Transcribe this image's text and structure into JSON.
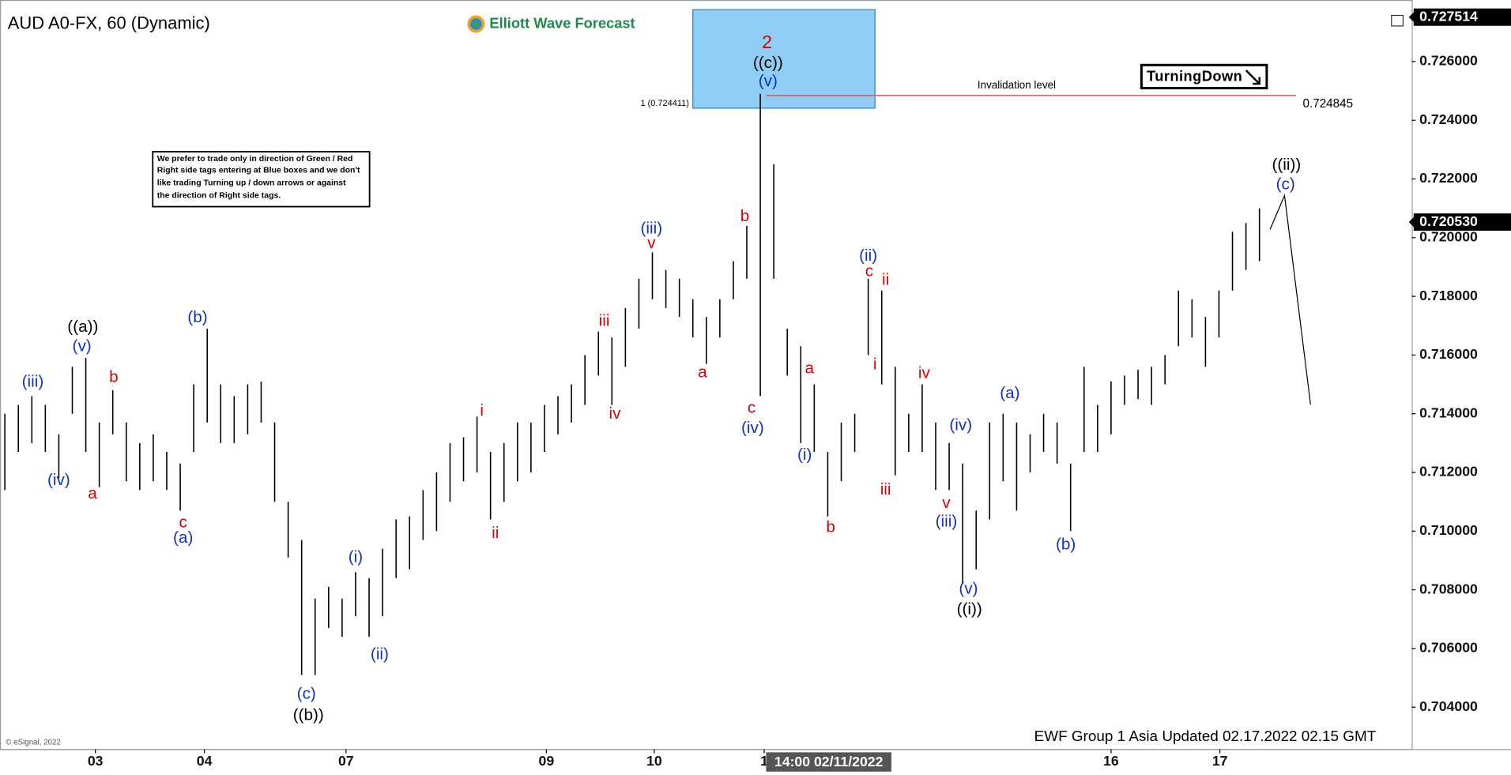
{
  "chart_data": {
    "type": "ohlc",
    "title": "AUD A0-FX, 60 (Dynamic)",
    "logo": "Elliott Wave Forecast",
    "note": [
      "We prefer to trade only in direction of Green / Red",
      "Right side tags entering at Blue boxes and we don't",
      "like trading Turning up / down arrows or against",
      "the direction of Right side tags."
    ],
    "tag": "TurningDown",
    "footer": "EWF Group 1 Asia Updated 02.17.2022 02.15 GMT",
    "copyright": "© eSignal, 2022",
    "cursor_label": "14:00 02/11/2022",
    "color": "#000000",
    "highs": [
      0.714,
      0.7143,
      0.7146,
      0.7143,
      0.7133,
      0.7156,
      0.7159,
      0.7137,
      0.7148,
      0.7137,
      0.713,
      0.7133,
      0.7127,
      0.7123,
      0.715,
      0.7169,
      0.715,
      0.7146,
      0.715,
      0.7151,
      0.7137,
      0.711,
      0.7097,
      0.7077,
      0.7081,
      0.7077,
      0.7086,
      0.7084,
      0.7094,
      0.7104,
      0.7105,
      0.7114,
      0.712,
      0.713,
      0.7132,
      0.7139,
      0.7127,
      0.713,
      0.7137,
      0.7137,
      0.7143,
      0.7146,
      0.715,
      0.716,
      0.7168,
      0.7166,
      0.7176,
      0.7186,
      0.7195,
      0.7189,
      0.7186,
      0.7179,
      0.7173,
      0.7179,
      0.7192,
      0.7204,
      0.7249,
      0.7225,
      0.7169,
      0.7163,
      0.715,
      0.7127,
      0.7137,
      0.714,
      0.7186,
      0.7182,
      0.7156,
      0.714,
      0.715,
      0.7137,
      0.713,
      0.7123,
      0.7107,
      0.7137,
      0.714,
      0.7137,
      0.7133,
      0.714,
      0.7137,
      0.7123,
      0.7156,
      0.7143,
      0.7151,
      0.7153,
      0.7155,
      0.7156,
      0.716,
      0.7182,
      0.7179,
      0.7173,
      0.7182,
      0.7202,
      0.7205,
      0.721
    ],
    "lows": [
      0.7114,
      0.7127,
      0.713,
      0.7127,
      0.7118,
      0.714,
      0.7127,
      0.7115,
      0.7133,
      0.7117,
      0.7114,
      0.7117,
      0.7114,
      0.7107,
      0.7127,
      0.7137,
      0.713,
      0.713,
      0.7133,
      0.7137,
      0.711,
      0.7091,
      0.7051,
      0.7051,
      0.7067,
      0.7064,
      0.7071,
      0.7064,
      0.7071,
      0.7084,
      0.7087,
      0.7097,
      0.71,
      0.711,
      0.7117,
      0.712,
      0.7104,
      0.711,
      0.7117,
      0.712,
      0.7127,
      0.7133,
      0.7137,
      0.7143,
      0.7153,
      0.7143,
      0.7156,
      0.7169,
      0.7179,
      0.7176,
      0.7173,
      0.7166,
      0.7157,
      0.7166,
      0.7179,
      0.7186,
      0.7146,
      0.7186,
      0.7153,
      0.713,
      0.7127,
      0.7105,
      0.7117,
      0.7127,
      0.716,
      0.715,
      0.7119,
      0.7127,
      0.7127,
      0.7114,
      0.7114,
      0.7082,
      0.7087,
      0.7104,
      0.7117,
      0.7107,
      0.712,
      0.7127,
      0.7123,
      0.71,
      0.7127,
      0.7127,
      0.7133,
      0.7143,
      0.7145,
      0.7143,
      0.715,
      0.7163,
      0.7166,
      0.7156,
      0.7166,
      0.7182,
      0.7189,
      0.7192
    ],
    "xlim": [
      -0.36,
      104.29
    ],
    "xticks": [
      {
        "value": 6.71,
        "label": "03"
      },
      {
        "value": 14.79,
        "label": "04"
      },
      {
        "value": 25.29,
        "label": "07"
      },
      {
        "value": 40.14,
        "label": "09"
      },
      {
        "value": 48.14,
        "label": "10"
      },
      {
        "value": 56.29,
        "label": "1"
      },
      {
        "value": 82,
        "label": "16"
      },
      {
        "value": 90.07,
        "label": "17"
      }
    ],
    "ylim": [
      0.70256,
      0.72777
    ],
    "yticks": [
      {
        "value": 0.704,
        "label": "0.704000"
      },
      {
        "value": 0.706,
        "label": "0.706000"
      },
      {
        "value": 0.708,
        "label": "0.708000"
      },
      {
        "value": 0.71,
        "label": "0.710000"
      },
      {
        "value": 0.712,
        "label": "0.712000"
      },
      {
        "value": 0.714,
        "label": "0.714000"
      },
      {
        "value": 0.716,
        "label": "0.716000"
      },
      {
        "value": 0.718,
        "label": "0.718000"
      },
      {
        "value": 0.72,
        "label": "0.720000"
      },
      {
        "value": 0.722,
        "label": "0.722000"
      },
      {
        "value": 0.724,
        "label": "0.724000"
      },
      {
        "value": 0.726,
        "label": "0.726000"
      }
    ],
    "blue_box": {
      "value": 0.724411,
      "label": "1 (0.724411)",
      "color": "#8fcdf5"
    },
    "invalidation": {
      "value": 0.724845,
      "label": "0.724845",
      "text": "Invalidation level",
      "color": "#e05050"
    },
    "last_price": {
      "value": 0.72053,
      "label": "0.720530"
    },
    "high_price": {
      "value": 0.727514,
      "label": "0.727514"
    },
    "wave_labels": [
      {
        "text": "2",
        "color": "#dd0000"
      },
      {
        "text": "((a))",
        "color": "#000000"
      },
      {
        "text": "((b))",
        "color": "#000000"
      },
      {
        "text": "((c))",
        "color": "#000000"
      },
      {
        "text": "((i))",
        "color": "#000000"
      },
      {
        "text": "((ii))",
        "color": "#000000"
      },
      {
        "text": "a",
        "color": "#dd0000"
      },
      {
        "text": "b",
        "color": "#dd0000"
      },
      {
        "text": "c",
        "color": "#dd0000"
      },
      {
        "text": "i",
        "color": "#dd0000"
      },
      {
        "text": "ii",
        "color": "#dd0000"
      },
      {
        "text": "iii",
        "color": "#dd0000"
      },
      {
        "text": "iv",
        "color": "#dd0000"
      },
      {
        "text": "v",
        "color": "#dd0000"
      },
      {
        "text": "a",
        "color": "#dd0000"
      },
      {
        "text": "b",
        "color": "#dd0000"
      },
      {
        "text": "c",
        "color": "#dd0000"
      },
      {
        "text": "a",
        "color": "#dd0000"
      },
      {
        "text": "b",
        "color": "#dd0000"
      },
      {
        "text": "c",
        "color": "#dd0000"
      },
      {
        "text": "i",
        "color": "#dd0000"
      },
      {
        "text": "ii",
        "color": "#dd0000"
      },
      {
        "text": "iii",
        "color": "#dd0000"
      },
      {
        "text": "iv",
        "color": "#dd0000"
      },
      {
        "text": "v",
        "color": "#dd0000"
      },
      {
        "text": "(iii)",
        "color": "#1030c8"
      },
      {
        "text": "(iv)",
        "color": "#1030c8"
      },
      {
        "text": "(v)",
        "color": "#1030c8"
      },
      {
        "text": "(b)",
        "color": "#1030c8"
      },
      {
        "text": "(a)",
        "color": "#1030c8"
      },
      {
        "text": "(c)",
        "color": "#1030c8"
      },
      {
        "text": "(i)",
        "color": "#1030c8"
      },
      {
        "text": "(ii)",
        "color": "#1030c8"
      },
      {
        "text": "(iii)",
        "color": "#1030c8"
      },
      {
        "text": "(v)",
        "color": "#1030c8"
      },
      {
        "text": "(iv)",
        "color": "#1030c8"
      },
      {
        "text": "(i)",
        "color": "#1030c8"
      },
      {
        "text": "(ii)",
        "color": "#1030c8"
      },
      {
        "text": "(iv)",
        "color": "#1030c8"
      },
      {
        "text": "(iii)",
        "color": "#1030c8"
      },
      {
        "text": "(v)",
        "color": "#1030c8"
      },
      {
        "text": "(a)",
        "color": "#1030c8"
      },
      {
        "text": "(b)",
        "color": "#1030c8"
      },
      {
        "text": "(c)",
        "color": "#1030c8"
      }
    ]
  }
}
